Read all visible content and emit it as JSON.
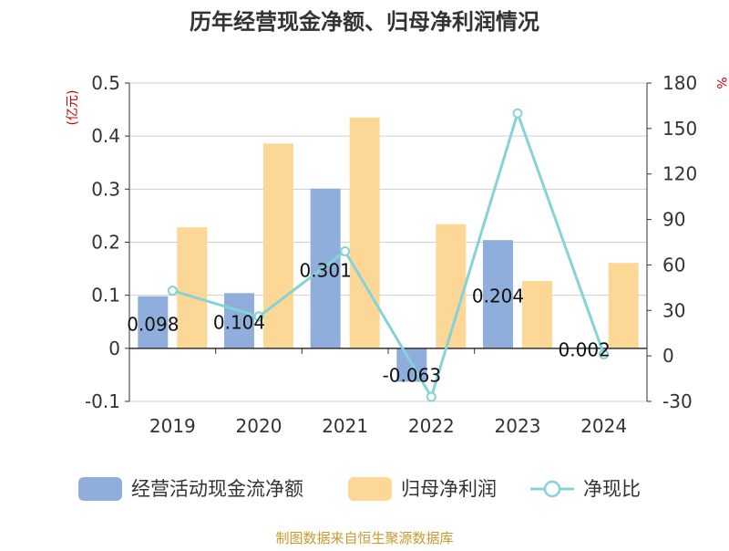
{
  "chart_data": {
    "type": "bar",
    "title": "历年经营现金净额、归母净利润情况",
    "left_unit": "(亿元)",
    "right_unit": "%",
    "categories": [
      "2019",
      "2020",
      "2021",
      "2022",
      "2023",
      "2024"
    ],
    "y_left": {
      "min": -0.1,
      "max": 0.5,
      "ticks": [
        "-0.1",
        "0",
        "0.1",
        "0.2",
        "0.3",
        "0.4",
        "0.5"
      ]
    },
    "y_right": {
      "min": -30,
      "max": 180,
      "ticks": [
        "-30",
        "0",
        "30",
        "60",
        "90",
        "120",
        "150",
        "180"
      ]
    },
    "series": [
      {
        "name": "经营活动现金流净额",
        "kind": "bar",
        "axis": "left",
        "color": "#8FAEDC",
        "values": [
          0.098,
          0.104,
          0.301,
          -0.063,
          0.204,
          0.002
        ],
        "labels": [
          "0.098",
          "0.104",
          "0.301",
          "-0.063",
          "0.204",
          "0.002"
        ]
      },
      {
        "name": "归母净利润",
        "kind": "bar",
        "axis": "left",
        "color": "#FDD796",
        "values": [
          0.228,
          0.386,
          0.435,
          0.234,
          0.127,
          0.161
        ]
      },
      {
        "name": "净现比",
        "kind": "line",
        "axis": "right",
        "color": "#85D3D6",
        "values": [
          43,
          26,
          69,
          -27,
          160,
          1
        ]
      }
    ],
    "grid": true,
    "legend_position": "bottom"
  },
  "source": "制图数据来自恒生聚源数据库"
}
